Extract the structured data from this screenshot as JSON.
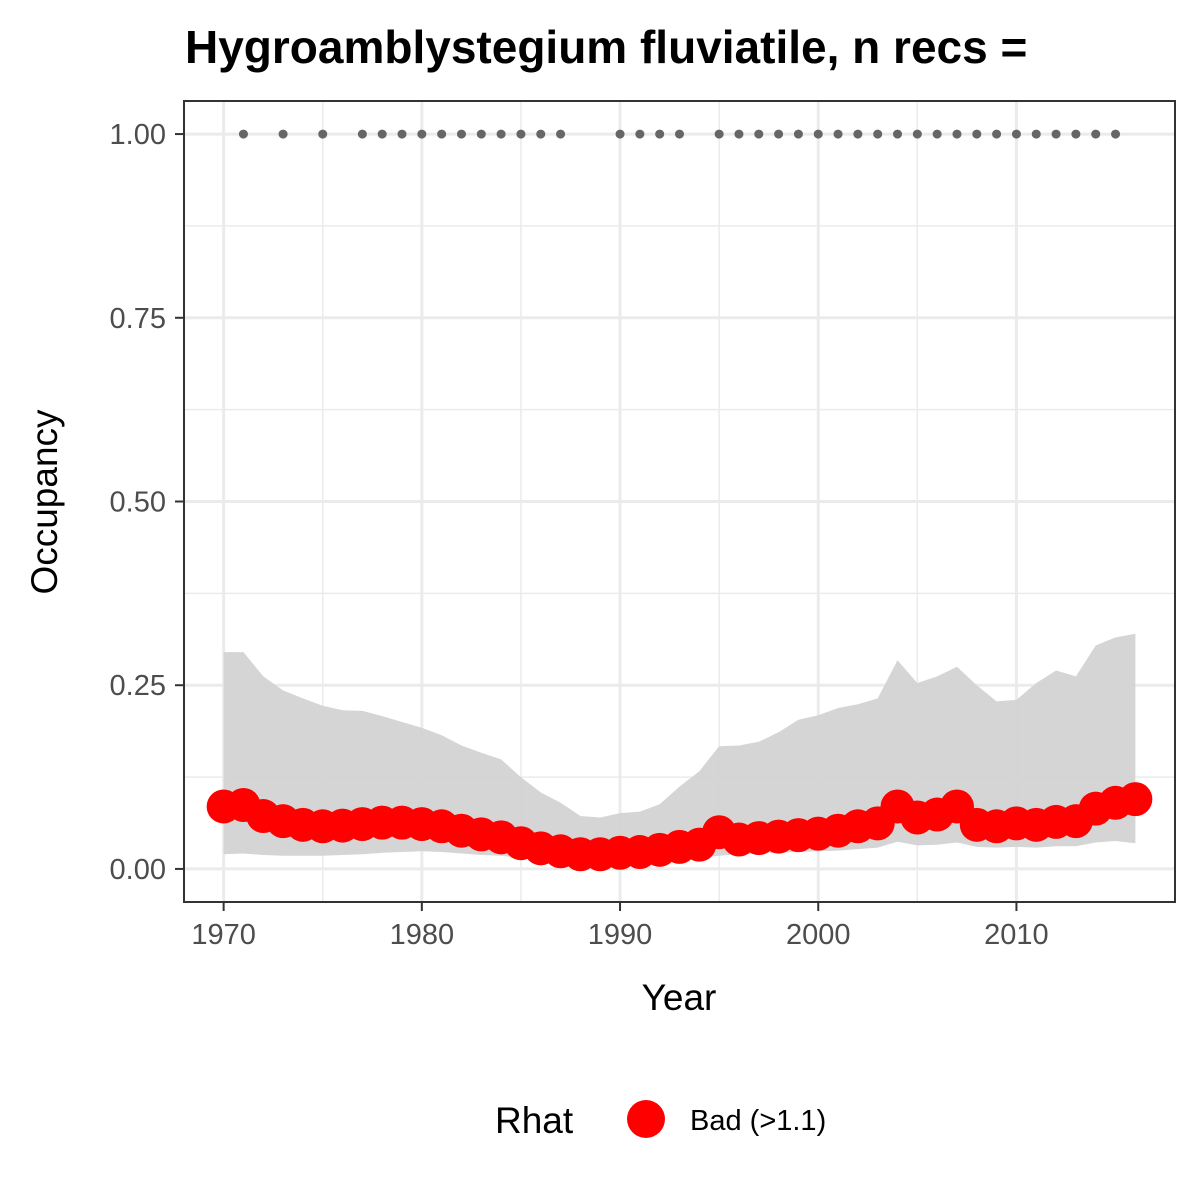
{
  "chart_data": {
    "type": "line",
    "title": "Hygroamblystegium fluviatile, n recs =",
    "xlabel": "Year",
    "ylabel": "Occupancy",
    "xlim": [
      1968,
      2018
    ],
    "ylim": [
      -0.045,
      1.045
    ],
    "x_ticks": [
      1970,
      1980,
      1990,
      2000,
      2010
    ],
    "x_tick_labels": [
      "1970",
      "1980",
      "1990",
      "2000",
      "2010"
    ],
    "y_ticks": [
      0,
      0.25,
      0.5,
      0.75,
      1.0
    ],
    "y_tick_labels": [
      "0.00",
      "0.25",
      "0.50",
      "0.75",
      "1.00"
    ],
    "grid": true,
    "years": [
      1970,
      1971,
      1972,
      1973,
      1974,
      1975,
      1976,
      1977,
      1978,
      1979,
      1980,
      1981,
      1982,
      1983,
      1984,
      1985,
      1986,
      1987,
      1988,
      1989,
      1990,
      1991,
      1992,
      1993,
      1994,
      1995,
      1996,
      1997,
      1998,
      1999,
      2000,
      2001,
      2002,
      2003,
      2004,
      2005,
      2006,
      2007,
      2008,
      2009,
      2010,
      2011,
      2012,
      2013,
      2014,
      2015,
      2016
    ],
    "mean": [
      0.085,
      0.087,
      0.072,
      0.065,
      0.06,
      0.058,
      0.059,
      0.061,
      0.063,
      0.063,
      0.061,
      0.058,
      0.052,
      0.047,
      0.043,
      0.035,
      0.028,
      0.024,
      0.02,
      0.02,
      0.022,
      0.023,
      0.026,
      0.03,
      0.033,
      0.05,
      0.04,
      0.042,
      0.044,
      0.046,
      0.048,
      0.052,
      0.058,
      0.062,
      0.085,
      0.07,
      0.074,
      0.085,
      0.06,
      0.058,
      0.062,
      0.06,
      0.064,
      0.065,
      0.082,
      0.09,
      0.095
    ],
    "lower": [
      0.02,
      0.021,
      0.019,
      0.018,
      0.018,
      0.018,
      0.019,
      0.02,
      0.022,
      0.023,
      0.024,
      0.023,
      0.021,
      0.019,
      0.018,
      0.015,
      0.012,
      0.01,
      0.009,
      0.009,
      0.01,
      0.011,
      0.012,
      0.014,
      0.016,
      0.018,
      0.02,
      0.021,
      0.022,
      0.023,
      0.024,
      0.025,
      0.027,
      0.029,
      0.037,
      0.032,
      0.033,
      0.036,
      0.03,
      0.029,
      0.03,
      0.029,
      0.031,
      0.031,
      0.036,
      0.038,
      0.035
    ],
    "upper": [
      0.295,
      0.295,
      0.262,
      0.243,
      0.232,
      0.222,
      0.216,
      0.215,
      0.208,
      0.2,
      0.192,
      0.182,
      0.168,
      0.158,
      0.149,
      0.125,
      0.104,
      0.09,
      0.072,
      0.07,
      0.076,
      0.078,
      0.088,
      0.112,
      0.133,
      0.167,
      0.168,
      0.173,
      0.186,
      0.203,
      0.209,
      0.219,
      0.224,
      0.232,
      0.284,
      0.253,
      0.262,
      0.275,
      0.25,
      0.228,
      0.23,
      0.253,
      0.27,
      0.262,
      0.304,
      0.315,
      0.32
    ],
    "record_years": [
      1971,
      1973,
      1975,
      1977,
      1978,
      1979,
      1980,
      1981,
      1982,
      1983,
      1984,
      1985,
      1986,
      1987,
      1990,
      1991,
      1992,
      1993,
      1995,
      1996,
      1997,
      1998,
      1999,
      2000,
      2001,
      2002,
      2003,
      2004,
      2005,
      2006,
      2007,
      2008,
      2009,
      2010,
      2011,
      2012,
      2013,
      2014,
      2015
    ],
    "record_value": 1.0,
    "legend": {
      "title": "Rhat",
      "position": "bottom",
      "entries": [
        {
          "label": "Bad (>1.1)",
          "color": "#ff0000"
        }
      ]
    },
    "colors": {
      "points": "#ff0000",
      "ribbon": "#d3d3d3",
      "records": "#666666",
      "grid": "#ebebeb",
      "panel_border": "#333333"
    }
  }
}
